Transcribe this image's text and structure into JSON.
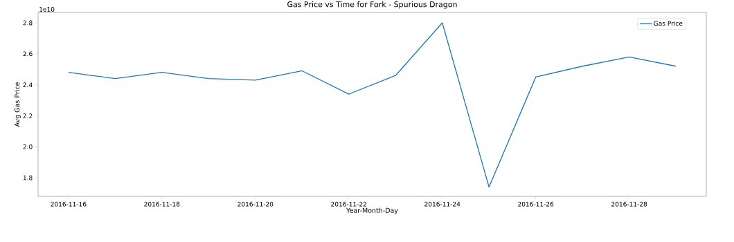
{
  "chart_data": {
    "type": "line",
    "title": "Gas Price vs Time for Fork - Spurious Dragon",
    "xlabel": "Year-Month-Day",
    "ylabel": "Avg Gas Price",
    "annotations": [
      "1e10"
    ],
    "x": [
      "2016-11-16",
      "2016-11-17",
      "2016-11-18",
      "2016-11-19",
      "2016-11-20",
      "2016-11-21",
      "2016-11-22",
      "2016-11-23",
      "2016-11-24",
      "2016-11-25",
      "2016-11-26",
      "2016-11-27",
      "2016-11-28",
      "2016-11-29"
    ],
    "series": [
      {
        "name": "Gas Price",
        "color": "#1f77b4",
        "values": [
          2.48,
          2.44,
          2.48,
          2.44,
          2.43,
          2.49,
          2.34,
          2.46,
          2.8,
          1.74,
          2.45,
          2.52,
          2.58,
          2.52
        ]
      }
    ],
    "xlim": [
      "2016-11-15T08:24",
      "2016-11-29T15:36"
    ],
    "ylim": [
      1.68,
      2.867
    ],
    "xticks": [
      "2016-11-16",
      "2016-11-18",
      "2016-11-20",
      "2016-11-22",
      "2016-11-24",
      "2016-11-26",
      "2016-11-28"
    ],
    "yticks": [
      1.8,
      {
        "value": 2.0,
        "label": "2.0"
      },
      2.2,
      2.4,
      2.6,
      2.8
    ],
    "grid": false,
    "legend": "top right",
    "marker": "none",
    "line_style": "solid"
  }
}
